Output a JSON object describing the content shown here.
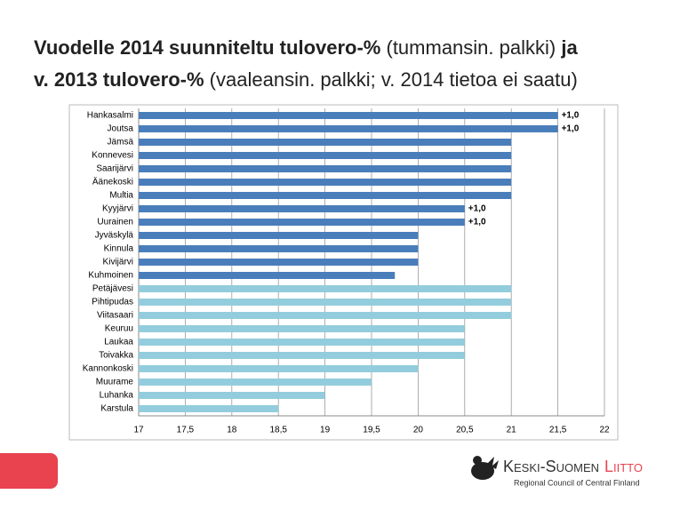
{
  "chart_data": {
    "type": "hbar",
    "title_lines": [
      [
        {
          "text": "Vuodelle 2014 suunniteltu tulovero-%",
          "bold": true
        },
        {
          "text": " (tummansin. palkki) ",
          "bold": false
        },
        {
          "text": "ja",
          "bold": true
        }
      ],
      [
        {
          "text": "v. 2013 tulovero-%",
          "bold": true
        },
        {
          "text": " (vaaleansin. palkki; v. 2014 tietoa ei saatu)",
          "bold": false
        }
      ]
    ],
    "categories": [
      "Hankasalmi",
      "Joutsa",
      "Jämsä",
      "Konnevesi",
      "Saarijärvi",
      "Äänekoski",
      "Multia",
      "Kyyjärvi",
      "Uurainen",
      "Jyväskylä",
      "Kinnula",
      "Kivijärvi",
      "Kuhmoinen",
      "Petäjävesi",
      "Pihtipudas",
      "Viitasaari",
      "Keuruu",
      "Laukaa",
      "Toivakka",
      "Kannonkoski",
      "Muurame",
      "Luhanka",
      "Karstula"
    ],
    "values": [
      21.5,
      21.5,
      21,
      21,
      21,
      21,
      21,
      20.5,
      20.5,
      20,
      20,
      20,
      19.75,
      21,
      21,
      21,
      20.5,
      20.5,
      20.5,
      20,
      19.5,
      19,
      18.5
    ],
    "colors": [
      "#4a7ebb",
      "#4a7ebb",
      "#4a7ebb",
      "#4a7ebb",
      "#4a7ebb",
      "#4a7ebb",
      "#4a7ebb",
      "#4a7ebb",
      "#4a7ebb",
      "#4a7ebb",
      "#4a7ebb",
      "#4a7ebb",
      "#4a7ebb",
      "#93cddd",
      "#93cddd",
      "#93cddd",
      "#93cddd",
      "#93cddd",
      "#93cddd",
      "#93cddd",
      "#93cddd",
      "#93cddd",
      "#93cddd"
    ],
    "annotations": [
      "+1,0",
      "+1,0",
      null,
      null,
      null,
      null,
      null,
      "+1,0",
      "+1,0",
      null,
      null,
      null,
      null,
      null,
      null,
      null,
      null,
      null,
      null,
      null,
      null,
      null,
      null
    ],
    "xlim": [
      17,
      22
    ],
    "xticks": [
      17,
      {
        "value": 17.5,
        "label": "17,5"
      },
      18,
      {
        "value": 18.5,
        "label": "18,5"
      },
      19,
      {
        "value": 19.5,
        "label": "19,5"
      },
      20,
      {
        "value": 20.5,
        "label": "20,5"
      },
      21,
      {
        "value": 21.5,
        "label": "21,5"
      },
      22
    ],
    "grid": true
  },
  "logo": {
    "name": "Keski-Suomen",
    "name2": "Liitto",
    "tagline": "Regional Council of Central Finland"
  }
}
